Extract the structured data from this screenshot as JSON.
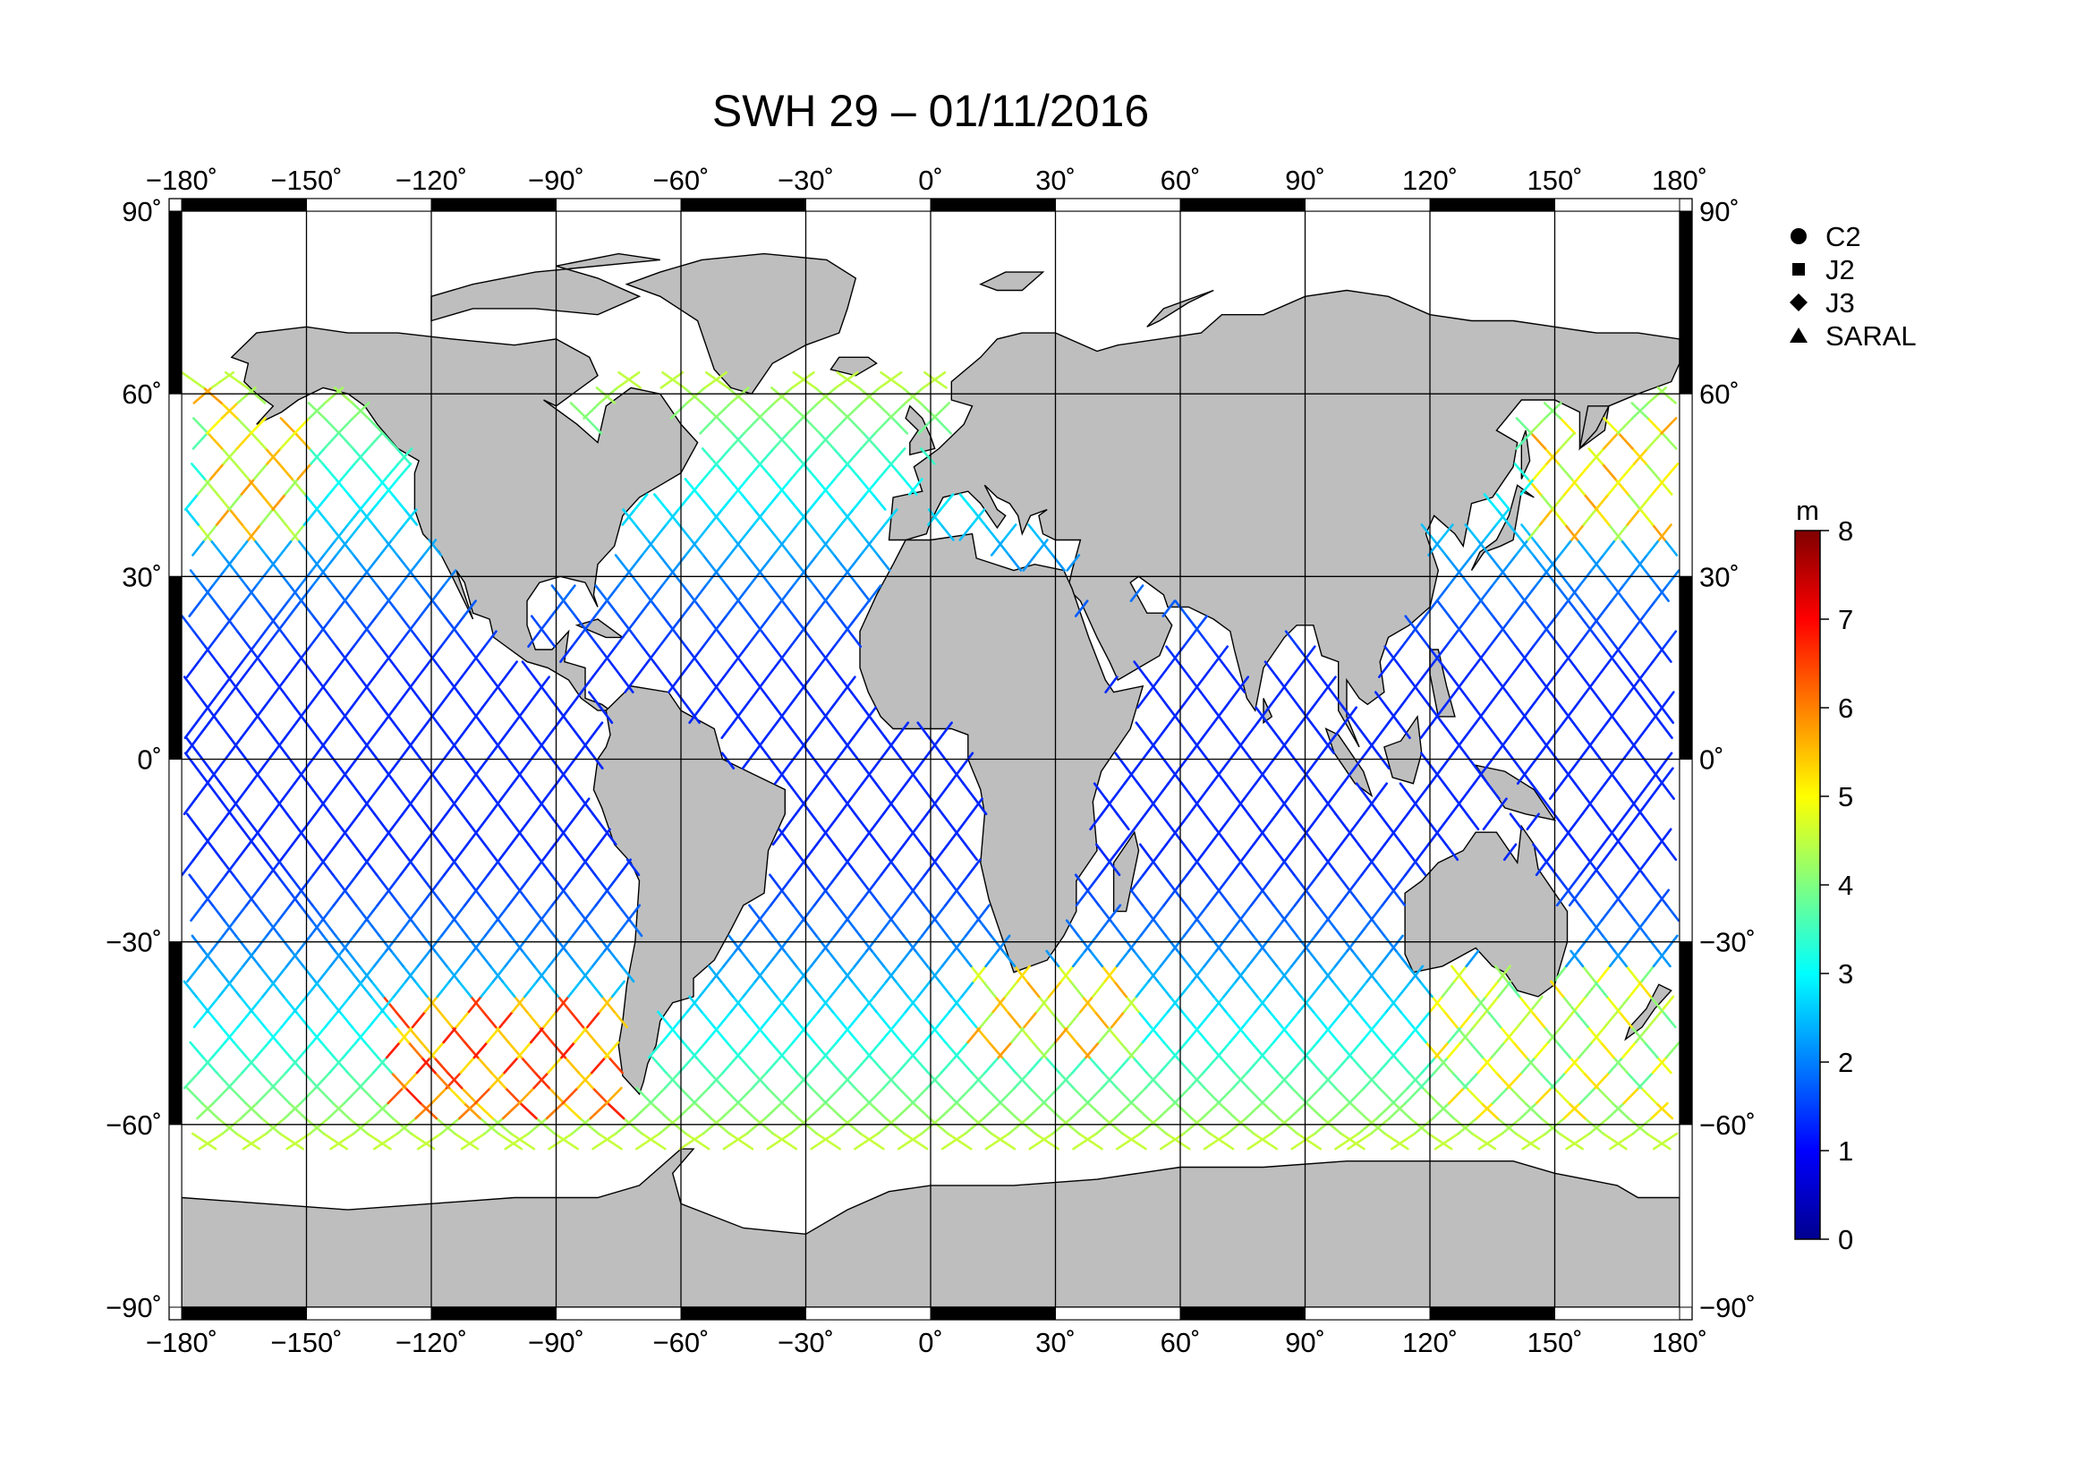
{
  "title": "SWH 29 – 01/11/2016",
  "map": {
    "lon_range": [
      -180,
      180
    ],
    "lat_range": [
      -90,
      90
    ],
    "lon_ticks": [
      -180,
      -150,
      -120,
      -90,
      -60,
      -30,
      0,
      30,
      60,
      90,
      120,
      150,
      180
    ],
    "lat_ticks": [
      90,
      60,
      30,
      0,
      -30,
      -60,
      -90
    ],
    "lon_tick_labels": [
      "−180˚",
      "−150˚",
      "−120˚",
      "−90˚",
      "−60˚",
      "−30˚",
      "0˚",
      "30˚",
      "60˚",
      "90˚",
      "120˚",
      "150˚",
      "180˚"
    ],
    "lat_tick_labels": [
      "90˚",
      "60˚",
      "30˚",
      "0˚",
      "−30˚",
      "−60˚",
      "−90˚"
    ],
    "grid": true,
    "land_color": "#bebebe",
    "ocean_color": "#ffffff"
  },
  "legend": {
    "items": [
      {
        "label": "C2",
        "marker": "circle"
      },
      {
        "label": "J2",
        "marker": "square"
      },
      {
        "label": "J3",
        "marker": "diamond"
      },
      {
        "label": "SARAL",
        "marker": "triangle"
      }
    ],
    "placement": "right"
  },
  "colorbar": {
    "unit": "m",
    "min": 0,
    "max": 8,
    "ticks": [
      "0",
      "1",
      "2",
      "3",
      "4",
      "5",
      "6",
      "7",
      "8"
    ],
    "colormap": "jet",
    "colors": [
      "#00008f",
      "#0000ff",
      "#0080ff",
      "#00ffff",
      "#80ff80",
      "#ffff00",
      "#ff8000",
      "#ff0000",
      "#800000"
    ]
  },
  "chart_data": {
    "type": "scatter",
    "title": "SWH 29 – 01/11/2016",
    "xlabel": "",
    "ylabel": "",
    "xlim": [
      -180,
      180
    ],
    "ylim": [
      -90,
      90
    ],
    "value_unit": "m",
    "value_range": [
      0,
      8
    ],
    "series": [
      {
        "name": "C2"
      },
      {
        "name": "J2"
      },
      {
        "name": "J3"
      },
      {
        "name": "SARAL"
      }
    ],
    "swh_regions": [
      {
        "lon": [
          -175,
          -150
        ],
        "lat": [
          35,
          60
        ],
        "swh": 5.5
      },
      {
        "lon": [
          -130,
          -70
        ],
        "lat": [
          -60,
          -40
        ],
        "swh": 6.5
      },
      {
        "lon": [
          10,
          50
        ],
        "lat": [
          -50,
          -35
        ],
        "swh": 5.5
      },
      {
        "lon": [
          120,
          180
        ],
        "lat": [
          -60,
          -35
        ],
        "swh": 5.0
      },
      {
        "lon": [
          145,
          180
        ],
        "lat": [
          35,
          55
        ],
        "swh": 5.5
      },
      {
        "lon": [
          -180,
          180
        ],
        "lat": [
          -20,
          25
        ],
        "swh": 1.5
      }
    ]
  }
}
